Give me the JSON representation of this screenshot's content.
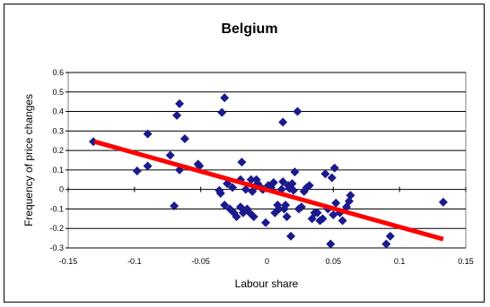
{
  "chart_data": {
    "type": "scatter",
    "title": "Belgium",
    "xlabel": "Labour share",
    "ylabel": "Frequency of price changes",
    "xlim": [
      -0.15,
      0.15
    ],
    "ylim": [
      -0.3,
      0.6
    ],
    "x_ticks": [
      "-0.15",
      "-0.1",
      "-0.05",
      "0",
      "0.05",
      "0.1",
      "0.15"
    ],
    "y_ticks": [
      "-0.3",
      "-0.2",
      "-0.1",
      "0",
      "0.1",
      "0.2",
      "0.3",
      "0.4",
      "0.5",
      "0.6"
    ],
    "grid": "horizontal",
    "colors": {
      "points": "#1a1a8c",
      "trend": "#ff0000"
    },
    "points": [
      [
        -0.131,
        0.245
      ],
      [
        -0.098,
        0.095
      ],
      [
        -0.09,
        0.285
      ],
      [
        -0.09,
        0.12
      ],
      [
        -0.073,
        0.175
      ],
      [
        -0.07,
        -0.085
      ],
      [
        -0.068,
        0.38
      ],
      [
        -0.066,
        0.44
      ],
      [
        -0.066,
        0.1
      ],
      [
        -0.062,
        0.26
      ],
      [
        -0.052,
        0.13
      ],
      [
        -0.051,
        0.12
      ],
      [
        -0.036,
        -0.005
      ],
      [
        -0.035,
        -0.02
      ],
      [
        -0.034,
        0.395
      ],
      [
        -0.032,
        0.47
      ],
      [
        -0.032,
        -0.08
      ],
      [
        -0.03,
        0.03
      ],
      [
        -0.028,
        -0.1
      ],
      [
        -0.026,
        0.01
      ],
      [
        -0.025,
        -0.12
      ],
      [
        -0.023,
        -0.14
      ],
      [
        -0.02,
        0.05
      ],
      [
        -0.02,
        -0.09
      ],
      [
        -0.019,
        0.14
      ],
      [
        -0.018,
        -0.12
      ],
      [
        -0.016,
        0.0
      ],
      [
        -0.015,
        -0.1
      ],
      [
        -0.013,
        -0.12
      ],
      [
        -0.012,
        0.05
      ],
      [
        -0.011,
        -0.01
      ],
      [
        -0.01,
        -0.14
      ],
      [
        -0.008,
        0.05
      ],
      [
        -0.007,
        0.03
      ],
      [
        -0.004,
        0.005
      ],
      [
        -0.003,
        0.0
      ],
      [
        -0.001,
        -0.17
      ],
      [
        0.001,
        0.02
      ],
      [
        0.003,
        0.01
      ],
      [
        0.005,
        0.035
      ],
      [
        0.006,
        -0.12
      ],
      [
        0.008,
        -0.08
      ],
      [
        0.009,
        -0.1
      ],
      [
        0.011,
        0.0
      ],
      [
        0.012,
        0.345
      ],
      [
        0.012,
        0.04
      ],
      [
        0.013,
        -0.1
      ],
      [
        0.014,
        -0.08
      ],
      [
        0.015,
        -0.14
      ],
      [
        0.016,
        0.02
      ],
      [
        0.017,
        0.005
      ],
      [
        0.018,
        -0.24
      ],
      [
        0.019,
        0.03
      ],
      [
        0.02,
        -0.005
      ],
      [
        0.021,
        0.09
      ],
      [
        0.023,
        0.4
      ],
      [
        0.024,
        -0.1
      ],
      [
        0.026,
        -0.09
      ],
      [
        0.028,
        -0.01
      ],
      [
        0.03,
        0.01
      ],
      [
        0.032,
        0.02
      ],
      [
        0.034,
        -0.15
      ],
      [
        0.036,
        -0.12
      ],
      [
        0.038,
        -0.12
      ],
      [
        0.04,
        -0.16
      ],
      [
        0.042,
        -0.15
      ],
      [
        0.044,
        0.08
      ],
      [
        0.046,
        -0.1
      ],
      [
        0.048,
        -0.28
      ],
      [
        0.049,
        0.06
      ],
      [
        0.05,
        -0.13
      ],
      [
        0.051,
        0.11
      ],
      [
        0.052,
        -0.07
      ],
      [
        0.055,
        -0.12
      ],
      [
        0.057,
        -0.16
      ],
      [
        0.06,
        -0.09
      ],
      [
        0.062,
        -0.06
      ],
      [
        0.063,
        -0.03
      ],
      [
        0.09,
        -0.28
      ],
      [
        0.093,
        -0.24
      ],
      [
        0.133,
        -0.065
      ]
    ],
    "trendline": {
      "x": [
        -0.13,
        0.133
      ],
      "y": [
        0.245,
        -0.255
      ]
    }
  }
}
